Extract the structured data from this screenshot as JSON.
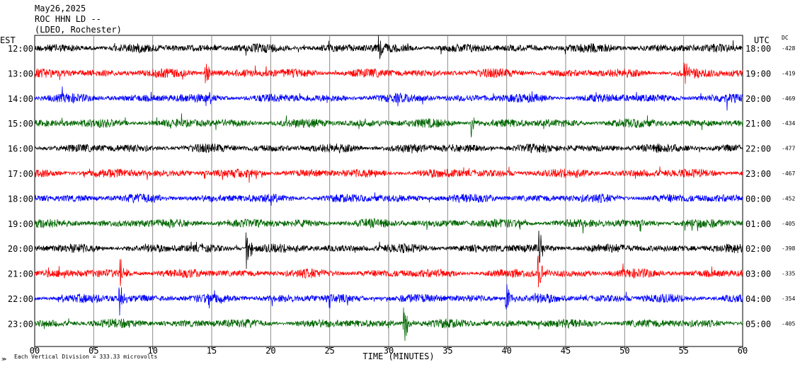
{
  "header": {
    "line1": "May26,2025",
    "line2": "ROC HHN LD --",
    "line3": "(LDEO, Rochester)"
  },
  "left_axis_label": "EST",
  "right_axis_label": "UTC",
  "dc_label": "DC",
  "footer_note": "Each Vertical Division =  333.33 microvolts",
  "chart_data": {
    "type": "line",
    "xlabel": "TIME (MINUTES)",
    "xlim": [
      0,
      60
    ],
    "x_ticks": [
      "00",
      "05",
      "10",
      "15",
      "20",
      "25",
      "30",
      "35",
      "40",
      "45",
      "50",
      "55",
      "60"
    ],
    "gridlines": "vertical every 5 minutes",
    "trace_colors": [
      "#000000",
      "#ff0000",
      "#0000ff",
      "#006600"
    ],
    "rows": [
      {
        "est": "12:00",
        "utc": "18:00",
        "dc": "-428",
        "color": "#000000"
      },
      {
        "est": "13:00",
        "utc": "19:00",
        "dc": "-419",
        "color": "#ff0000"
      },
      {
        "est": "14:00",
        "utc": "20:00",
        "dc": "-469",
        "color": "#0000ff"
      },
      {
        "est": "15:00",
        "utc": "21:00",
        "dc": "-434",
        "color": "#006600"
      },
      {
        "est": "16:00",
        "utc": "22:00",
        "dc": "-477",
        "color": "#000000"
      },
      {
        "est": "17:00",
        "utc": "23:00",
        "dc": "-467",
        "color": "#ff0000"
      },
      {
        "est": "18:00",
        "utc": "00:00",
        "dc": "-452",
        "color": "#0000ff"
      },
      {
        "est": "19:00",
        "utc": "01:00",
        "dc": "-405",
        "color": "#006600"
      },
      {
        "est": "20:00",
        "utc": "02:00",
        "dc": "-398",
        "color": "#000000"
      },
      {
        "est": "21:00",
        "utc": "03:00",
        "dc": "-335",
        "color": "#ff0000"
      },
      {
        "est": "22:00",
        "utc": "04:00",
        "dc": "-354",
        "color": "#0000ff"
      },
      {
        "est": "23:00",
        "utc": "05:00",
        "dc": "-405",
        "color": "#006600"
      }
    ],
    "events": [
      {
        "row": 0,
        "minute": 29.2,
        "amplitude": 1.3
      },
      {
        "row": 1,
        "minute": 14.5,
        "amplitude": 1.2
      },
      {
        "row": 1,
        "minute": 55.1,
        "amplitude": 1.4
      },
      {
        "row": 3,
        "minute": 37.0,
        "amplitude": 1.3
      },
      {
        "row": 8,
        "minute": 18.0,
        "amplitude": 1.8
      },
      {
        "row": 8,
        "minute": 42.8,
        "amplitude": 1.5
      },
      {
        "row": 9,
        "minute": 7.3,
        "amplitude": 1.4
      },
      {
        "row": 9,
        "minute": 42.7,
        "amplitude": 1.6
      },
      {
        "row": 10,
        "minute": 7.2,
        "amplitude": 1.6
      },
      {
        "row": 10,
        "minute": 40.0,
        "amplitude": 1.5
      },
      {
        "row": 11,
        "minute": 31.3,
        "amplitude": 2.2
      }
    ]
  }
}
